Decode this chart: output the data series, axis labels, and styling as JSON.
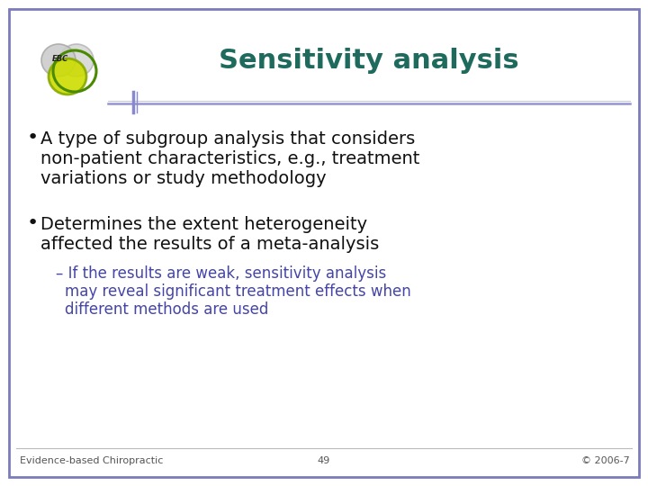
{
  "title": "Sensitivity analysis",
  "title_color": "#1E6B5E",
  "title_fontsize": 22,
  "border_color": "#7B7BBB",
  "background_color": "#FFFFFF",
  "bullet1_line1": "A type of subgroup analysis that considers",
  "bullet1_line2": "non-patient characteristics, e.g., treatment",
  "bullet1_line3": "variations or study methodology",
  "bullet2_line1": "Determines the extent heterogeneity",
  "bullet2_line2": "affected the results of a meta-analysis",
  "sub_line1": "– If the results are weak, sensitivity analysis",
  "sub_line2": "    may reveal significant treatment effects when",
  "sub_line3": "    different methods are used",
  "sub_color": "#4444AA",
  "footer_left": "Evidence-based Chiropractic",
  "footer_center": "49",
  "footer_right": "© 2006-7",
  "footer_color": "#555555",
  "footer_fontsize": 8,
  "bullet_fontsize": 14,
  "sub_fontsize": 12,
  "separator_color": "#8888CC"
}
